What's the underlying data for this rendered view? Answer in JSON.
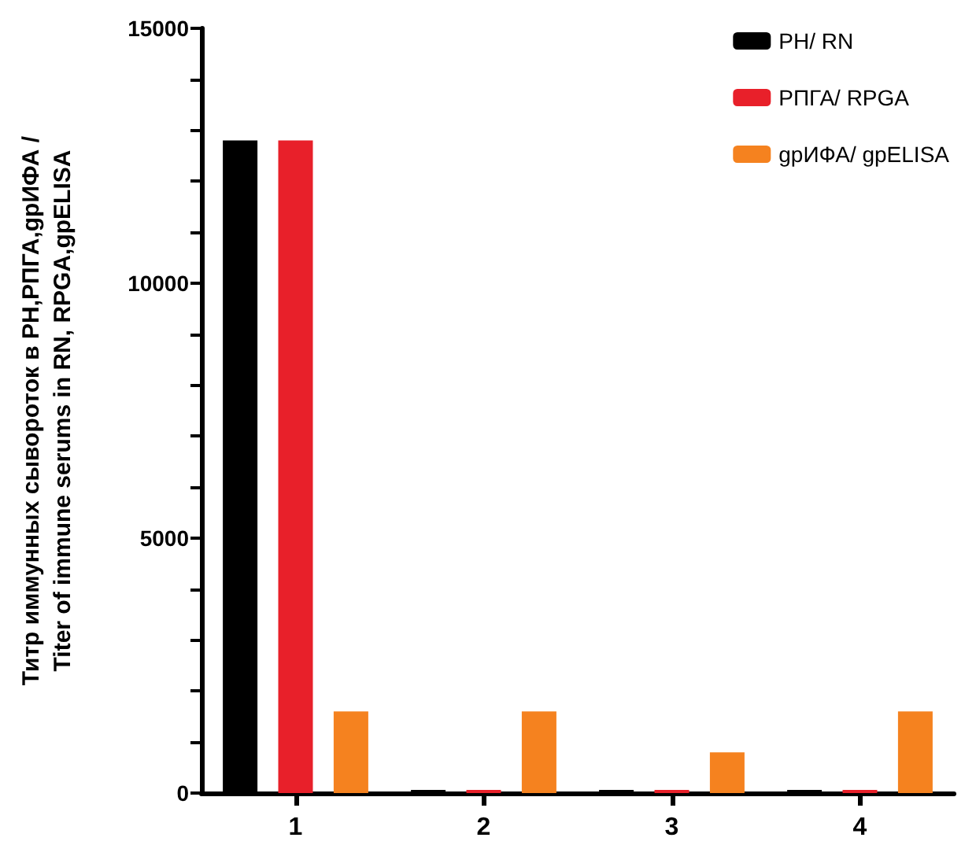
{
  "chart_data": {
    "type": "bar",
    "ylabel": "Титр иммунных сывороток в РН,РПГА,gpИФА / Titer of immune serums in RN, RPGA,gpELISA",
    "categories": [
      "1",
      "2",
      "3",
      "4"
    ],
    "series": [
      {
        "name": "РН/ RN",
        "color": "#000000",
        "values": [
          12800,
          60,
          60,
          60
        ]
      },
      {
        "name": "РПГА/ RPGA",
        "color": "#e8202a",
        "values": [
          12800,
          60,
          60,
          60
        ]
      },
      {
        "name": "gpИФА/ gpELISA",
        "color": "#f5821f",
        "values": [
          1600,
          1600,
          800,
          1600
        ]
      }
    ],
    "ylim": [
      0,
      15000
    ],
    "yticks": [
      0,
      {
        "value": 1000,
        "label": null
      },
      {
        "value": 2000,
        "label": null
      },
      {
        "value": 3000,
        "label": null
      },
      {
        "value": 4000,
        "label": null
      },
      5000,
      {
        "value": 6000,
        "label": null
      },
      {
        "value": 7000,
        "label": null
      },
      {
        "value": 8000,
        "label": null
      },
      {
        "value": 9000,
        "label": null
      },
      10000,
      {
        "value": 11000,
        "label": null
      },
      {
        "value": 12000,
        "label": null
      },
      {
        "value": 13000,
        "label": null
      },
      {
        "value": 14000,
        "label": null
      },
      15000
    ],
    "grid": false,
    "legend": "top right"
  }
}
